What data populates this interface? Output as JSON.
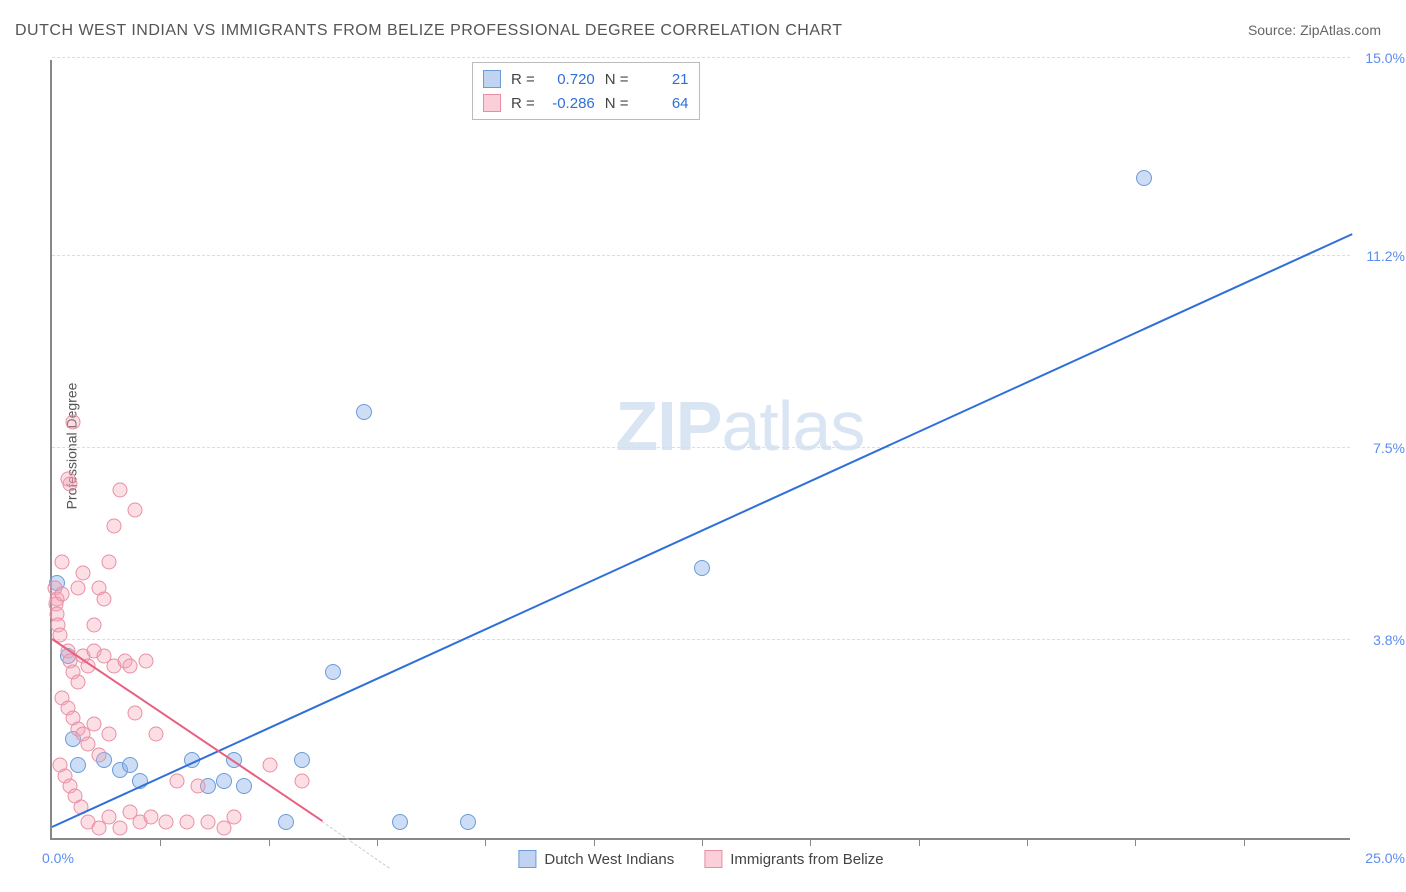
{
  "title": "DUTCH WEST INDIAN VS IMMIGRANTS FROM BELIZE PROFESSIONAL DEGREE CORRELATION CHART",
  "source": "Source: ZipAtlas.com",
  "ylabel": "Professional Degree",
  "watermark_zip": "ZIP",
  "watermark_atlas": "atlas",
  "chart": {
    "type": "scatter",
    "xlim": [
      0,
      25
    ],
    "ylim": [
      0,
      15
    ],
    "x_origin_label": "0.0%",
    "x_max_label": "25.0%",
    "yticks": [
      {
        "value": 3.8,
        "label": "3.8%"
      },
      {
        "value": 7.5,
        "label": "7.5%"
      },
      {
        "value": 11.2,
        "label": "11.2%"
      },
      {
        "value": 15.0,
        "label": "15.0%"
      }
    ],
    "xtick_positions": [
      2.08,
      4.17,
      6.25,
      8.33,
      10.42,
      12.5,
      14.58,
      16.67,
      18.75,
      20.83,
      22.92
    ],
    "background_color": "#ffffff",
    "grid_color": "#dddddd",
    "axis_color": "#888888",
    "series": [
      {
        "name": "Dutch West Indians",
        "color_fill": "rgba(130,170,230,0.4)",
        "color_stroke": "#6b9bd8",
        "marker_size": 16,
        "trend": {
          "x0": 0,
          "y0": 0.2,
          "x1": 25,
          "y1": 11.6,
          "color": "#2f6fd8"
        },
        "R": "0.720",
        "N": "21",
        "points": [
          {
            "x": 0.1,
            "y": 4.9
          },
          {
            "x": 0.3,
            "y": 3.5
          },
          {
            "x": 0.4,
            "y": 1.9
          },
          {
            "x": 0.5,
            "y": 1.4
          },
          {
            "x": 1.0,
            "y": 1.5
          },
          {
            "x": 1.3,
            "y": 1.3
          },
          {
            "x": 1.5,
            "y": 1.4
          },
          {
            "x": 1.7,
            "y": 1.1
          },
          {
            "x": 2.7,
            "y": 1.5
          },
          {
            "x": 3.0,
            "y": 1.0
          },
          {
            "x": 3.3,
            "y": 1.1
          },
          {
            "x": 3.5,
            "y": 1.5
          },
          {
            "x": 3.7,
            "y": 1.0
          },
          {
            "x": 4.5,
            "y": 0.3
          },
          {
            "x": 4.8,
            "y": 1.5
          },
          {
            "x": 5.4,
            "y": 3.2
          },
          {
            "x": 6.0,
            "y": 8.2
          },
          {
            "x": 6.7,
            "y": 0.3
          },
          {
            "x": 8.0,
            "y": 0.3
          },
          {
            "x": 12.5,
            "y": 5.2
          },
          {
            "x": 21.0,
            "y": 12.7
          }
        ]
      },
      {
        "name": "Immigrants from Belize",
        "color_fill": "rgba(245,160,180,0.35)",
        "color_stroke": "#e88fa5",
        "marker_size": 15,
        "trend": {
          "x0": 0,
          "y0": 3.8,
          "x1": 5.2,
          "y1": 0.3,
          "color": "#e8607f"
        },
        "trend_dash": {
          "x0": 5.2,
          "y0": 0.3,
          "x1": 6.5,
          "y1": -0.6
        },
        "R": "-0.286",
        "N": "64",
        "points": [
          {
            "x": 0.05,
            "y": 4.8
          },
          {
            "x": 0.1,
            "y": 4.6
          },
          {
            "x": 0.08,
            "y": 4.5
          },
          {
            "x": 0.1,
            "y": 4.3
          },
          {
            "x": 0.2,
            "y": 4.7
          },
          {
            "x": 0.12,
            "y": 4.1
          },
          {
            "x": 0.15,
            "y": 3.9
          },
          {
            "x": 0.3,
            "y": 6.9
          },
          {
            "x": 0.35,
            "y": 6.8
          },
          {
            "x": 0.4,
            "y": 8.0
          },
          {
            "x": 0.5,
            "y": 4.8
          },
          {
            "x": 0.6,
            "y": 5.1
          },
          {
            "x": 0.2,
            "y": 5.3
          },
          {
            "x": 0.3,
            "y": 3.6
          },
          {
            "x": 0.35,
            "y": 3.4
          },
          {
            "x": 0.4,
            "y": 3.2
          },
          {
            "x": 0.5,
            "y": 3.0
          },
          {
            "x": 0.6,
            "y": 3.5
          },
          {
            "x": 0.7,
            "y": 3.3
          },
          {
            "x": 0.8,
            "y": 3.6
          },
          {
            "x": 0.9,
            "y": 4.8
          },
          {
            "x": 1.0,
            "y": 4.6
          },
          {
            "x": 1.1,
            "y": 5.3
          },
          {
            "x": 1.2,
            "y": 6.0
          },
          {
            "x": 1.3,
            "y": 6.7
          },
          {
            "x": 1.6,
            "y": 6.3
          },
          {
            "x": 0.2,
            "y": 2.7
          },
          {
            "x": 0.3,
            "y": 2.5
          },
          {
            "x": 0.4,
            "y": 2.3
          },
          {
            "x": 0.5,
            "y": 2.1
          },
          {
            "x": 0.6,
            "y": 2.0
          },
          {
            "x": 0.7,
            "y": 1.8
          },
          {
            "x": 0.8,
            "y": 2.2
          },
          {
            "x": 0.9,
            "y": 1.6
          },
          {
            "x": 1.0,
            "y": 3.5
          },
          {
            "x": 1.1,
            "y": 2.0
          },
          {
            "x": 1.2,
            "y": 3.3
          },
          {
            "x": 1.4,
            "y": 3.4
          },
          {
            "x": 1.5,
            "y": 3.3
          },
          {
            "x": 1.6,
            "y": 2.4
          },
          {
            "x": 1.8,
            "y": 3.4
          },
          {
            "x": 2.0,
            "y": 2.0
          },
          {
            "x": 2.2,
            "y": 0.3
          },
          {
            "x": 2.4,
            "y": 1.1
          },
          {
            "x": 2.6,
            "y": 0.3
          },
          {
            "x": 2.8,
            "y": 1.0
          },
          {
            "x": 3.0,
            "y": 0.3
          },
          {
            "x": 3.3,
            "y": 0.2
          },
          {
            "x": 3.5,
            "y": 0.4
          },
          {
            "x": 4.2,
            "y": 1.4
          },
          {
            "x": 4.8,
            "y": 1.1
          },
          {
            "x": 0.15,
            "y": 1.4
          },
          {
            "x": 0.25,
            "y": 1.2
          },
          {
            "x": 0.35,
            "y": 1.0
          },
          {
            "x": 0.45,
            "y": 0.8
          },
          {
            "x": 0.55,
            "y": 0.6
          },
          {
            "x": 0.7,
            "y": 0.3
          },
          {
            "x": 0.9,
            "y": 0.2
          },
          {
            "x": 1.1,
            "y": 0.4
          },
          {
            "x": 1.3,
            "y": 0.2
          },
          {
            "x": 1.5,
            "y": 0.5
          },
          {
            "x": 1.7,
            "y": 0.3
          },
          {
            "x": 1.9,
            "y": 0.4
          },
          {
            "x": 0.8,
            "y": 4.1
          }
        ]
      }
    ]
  },
  "stats_labels": {
    "R_label": "R =",
    "N_label": "N ="
  },
  "bottom_legend": [
    {
      "swatch": "blue",
      "label": "Dutch West Indians"
    },
    {
      "swatch": "pink",
      "label": "Immigrants from Belize"
    }
  ]
}
